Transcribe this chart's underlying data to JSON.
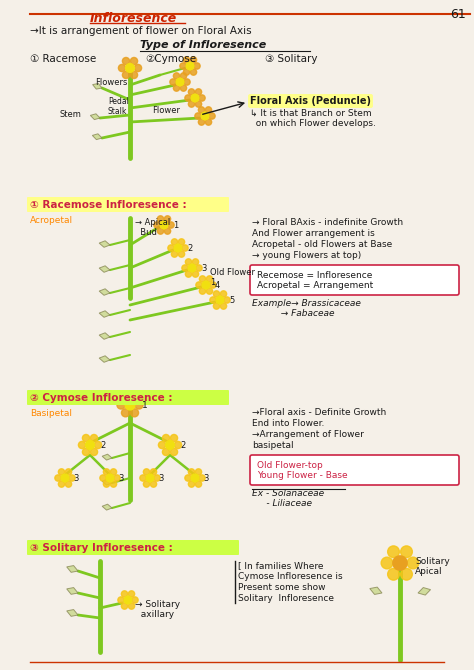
{
  "page_number": "61",
  "bg_color": "#f5f0e8",
  "title": "Infloresence",
  "subtitle": "→It is arrangement of flower on Floral Axis",
  "section_title": "Type of Infloresence",
  "types": [
    "① Racemose",
    "②Cymose",
    "③ Solitary"
  ],
  "floral_axis_label": "Floral Axis (Peduncle)",
  "floral_axis_desc": "↳ It is that Branch or Stem\n  on which Flower develops.",
  "section1_title": "① Racemose Infloresence :",
  "section1_label_left": "Acropetal",
  "section1_apical_bud": "→ Apical\n  Bud",
  "section1_old_flower": "Old Flower\n1",
  "section1_notes": [
    "→ Floral BAxis - indefinite Growth",
    "And Flower arrangement is",
    "Acropetal - old Flowers at Base",
    "→ young Flowers at top)"
  ],
  "section1_box": "Recemose = Infloresence\nAcropetal = Arrangement",
  "section1_example": "Example→ Brassicaceae\n          → Fabaceae",
  "section2_title": "② Cymose Infloresence :",
  "section2_label_left": "Basipetal",
  "section2_notes": [
    "→Floral axis - Definite Growth",
    "End into Flower.",
    "→Arrangement of Flower",
    "basipetal"
  ],
  "section2_box": "Old Flower-top\nYoung Flower - Base",
  "section2_example": "Ex - Solanaceae\n     - Liliaceae",
  "section3_title": "③ Solitary Infloresence :",
  "section3_notes": [
    "[ In families Where",
    "Cymose Infloresence is",
    "Present some show",
    "Solitary  Infloresence"
  ],
  "section3_label_right": "Solitary\nApical",
  "section3_label_bottom": "→ Solitary\n  axillary",
  "green_stem_color": "#7ec820",
  "yellow_flower_color": "#f5c518",
  "orange_flower_color": "#e8a020",
  "red_title_color": "#cc2200",
  "pink_section_color": "#cc2244",
  "dark_text": "#1a1a1a",
  "highlight_yellow": "#ffff88",
  "highlight_green": "#ccff44",
  "stem_label": "Stem",
  "flowers_label": "Flowers",
  "pedal_stalk_label": "Pedal\nStalk",
  "flower_label": "Flower"
}
